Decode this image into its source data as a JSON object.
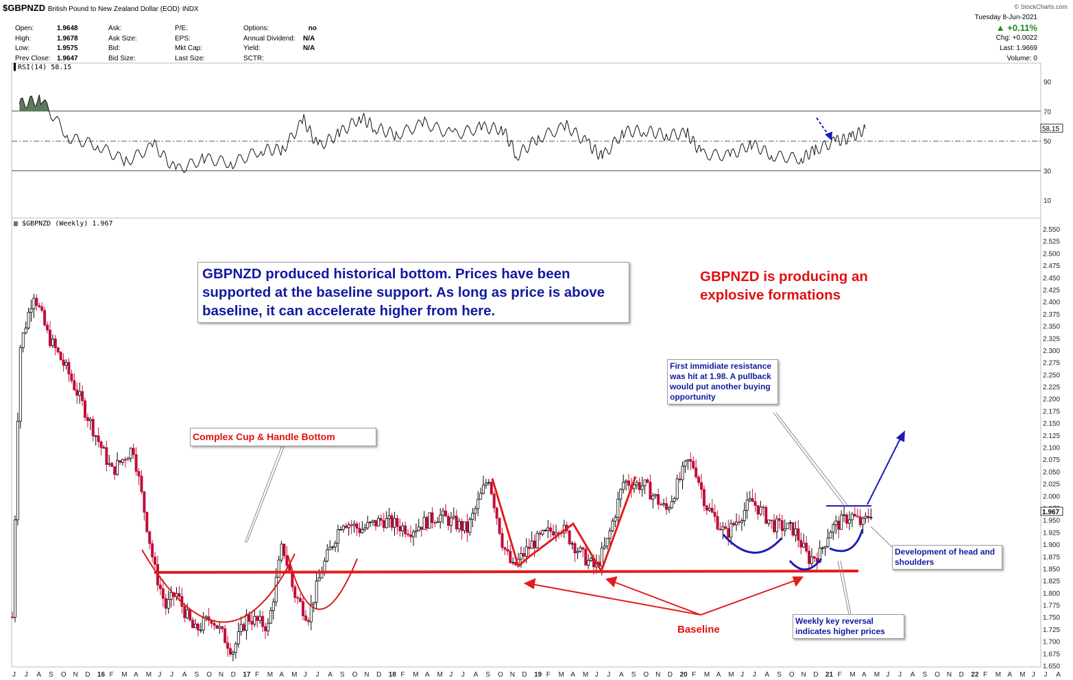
{
  "header": {
    "symbol": "$GBPNZD",
    "name": "British Pound to New Zealand Dollar (EOD)",
    "exchange": "INDX",
    "brand": "© StockCharts.com",
    "date": "Tuesday  8-Jun-2021",
    "change_pct": "▲ +0.11%",
    "change": "Chg: +0.0022",
    "last": "Last:  1.9669",
    "volume": "Volume:       0",
    "stats": {
      "open_label": "Open:",
      "open": "1.9648",
      "high_label": "High:",
      "high": "1.9678",
      "low_label": "Low:",
      "low": "1.9575",
      "prev_label": "Prev Close:",
      "prev": "1.9647",
      "ask_label": "Ask:",
      "ask_size_label": "Ask Size:",
      "bid_label": "Bid:",
      "bid_size_label": "Bid Size:",
      "pe_label": "P/E:",
      "eps_label": "EPS:",
      "mktcap_label": "Mkt Cap:",
      "lastsize_label": "Last Size:",
      "options_label": "Options:",
      "options": "no",
      "dividend_label": "Annual Dividend:",
      "dividend": "N/A",
      "yield_label": "Yield:",
      "yield": "N/A",
      "sctr_label": "SCTR:"
    }
  },
  "rsi_label": "RSI(14) 58.15",
  "price_label": "$GBPNZD (Weekly) 1.967",
  "annotations": {
    "main_note": "GBPNZD produced historical bottom. Prices have been supported at the baseline support. As long as price is above baseline, it can accelerate higher from here.",
    "explosive": "GBPNZD is producing an explosive formations",
    "cup_handle": "Complex Cup & Handle Bottom",
    "resistance": "First immidiate resistance was hit at 1.98. A pullback would put another buying opportunity",
    "head_shoulders": "Development of head and shoulders",
    "key_reversal": "Weekly key reversal indicates higher prices",
    "baseline": "Baseline"
  },
  "chart_data": [
    {
      "type": "line",
      "title": "RSI(14) 58.15",
      "ylim": [
        0,
        100
      ],
      "yticks": [
        10,
        30,
        50,
        70,
        90
      ],
      "last_value": "58.15",
      "x": [
        2015.45,
        2015.6,
        2015.8,
        2016.0,
        2016.2,
        2016.4,
        2016.55,
        2016.75,
        2016.95,
        2017.15,
        2017.3,
        2017.45,
        2017.55,
        2017.7,
        2017.85,
        2017.95,
        2018.1,
        2018.3,
        2018.5,
        2018.7,
        2018.85,
        2018.95,
        2019.1,
        2019.3,
        2019.45,
        2019.55,
        2019.7,
        2019.85,
        2020.0,
        2020.15,
        2020.25,
        2020.45,
        2020.6,
        2020.75,
        2020.95,
        2021.05,
        2021.2,
        2021.3,
        2021.4
      ],
      "values": [
        75,
        78,
        52,
        47,
        36,
        47,
        30,
        38,
        35,
        44,
        44,
        64,
        46,
        55,
        66,
        59,
        54,
        62,
        54,
        59,
        58,
        40,
        52,
        60,
        48,
        39,
        56,
        57,
        54,
        55,
        41,
        40,
        48,
        40,
        38,
        44,
        50,
        52,
        58.15
      ]
    },
    {
      "type": "candlestick",
      "title": "$GBPNZD (Weekly) 1.967",
      "ylim": [
        1.65,
        2.55
      ],
      "yticks": [
        "1.650",
        "1.675",
        "1.700",
        "1.725",
        "1.750",
        "1.775",
        "1.800",
        "1.825",
        "1.850",
        "1.875",
        "1.900",
        "1.925",
        "1.950",
        "1.975",
        "2.000",
        "2.025",
        "2.050",
        "2.075",
        "2.100",
        "2.125",
        "2.150",
        "2.175",
        "2.200",
        "2.225",
        "2.250",
        "2.275",
        "2.300",
        "2.325",
        "2.350",
        "2.375",
        "2.400",
        "2.425",
        "2.450",
        "2.475",
        "2.500",
        "2.525",
        "2.550"
      ],
      "last_price": "1.967",
      "baseline": 1.84,
      "x_labels": [
        "J",
        "J",
        "A",
        "S",
        "O",
        "N",
        "D",
        "16",
        "F",
        "M",
        "A",
        "M",
        "J",
        "J",
        "A",
        "S",
        "O",
        "N",
        "D",
        "17",
        "F",
        "M",
        "A",
        "M",
        "J",
        "J",
        "A",
        "S",
        "O",
        "N",
        "D",
        "18",
        "F",
        "M",
        "A",
        "M",
        "J",
        "J",
        "A",
        "S",
        "O",
        "N",
        "D",
        "19",
        "F",
        "M",
        "A",
        "M",
        "J",
        "J",
        "A",
        "S",
        "O",
        "N",
        "D",
        "20",
        "F",
        "M",
        "A",
        "M",
        "J",
        "J",
        "A",
        "S",
        "O",
        "N",
        "D",
        "21",
        "F",
        "M",
        "A",
        "M",
        "J",
        "J",
        "A",
        "S",
        "O",
        "N",
        "D",
        "22",
        "F",
        "M",
        "A",
        "M",
        "J",
        "J",
        "A"
      ],
      "x": [
        2015.4,
        2015.45,
        2015.55,
        2015.65,
        2015.8,
        2015.95,
        2016.1,
        2016.25,
        2016.4,
        2016.48,
        2016.55,
        2016.68,
        2016.8,
        2016.95,
        2017.05,
        2017.2,
        2017.3,
        2017.38,
        2017.48,
        2017.58,
        2017.72,
        2017.85,
        2018.0,
        2018.2,
        2018.4,
        2018.6,
        2018.75,
        2018.85,
        2018.92,
        2019.05,
        2019.25,
        2019.4,
        2019.5,
        2019.58,
        2019.7,
        2019.85,
        2020.0,
        2020.15,
        2020.2,
        2020.28,
        2020.42,
        2020.6,
        2020.75,
        2020.9,
        2021.0,
        2021.08,
        2021.15,
        2021.3,
        2021.38,
        2021.44
      ],
      "values": [
        1.75,
        2.3,
        2.42,
        2.33,
        2.25,
        2.15,
        2.05,
        2.1,
        1.85,
        1.77,
        1.8,
        1.72,
        1.75,
        1.68,
        1.75,
        1.73,
        1.9,
        1.8,
        1.75,
        1.85,
        1.95,
        1.93,
        1.95,
        1.93,
        1.96,
        1.93,
        2.04,
        1.9,
        1.85,
        1.9,
        1.94,
        1.88,
        1.85,
        1.9,
        2.03,
        2.02,
        1.97,
        2.07,
        2.06,
        1.98,
        1.92,
        1.99,
        1.94,
        1.93,
        1.87,
        1.88,
        1.93,
        1.96,
        1.94,
        1.967
      ]
    }
  ],
  "colors": {
    "up": "#000000",
    "down": "#c00e3a",
    "accent_red": "#e41c1c",
    "accent_blue": "#1a1ab8",
    "rsi_overbought": "#4a6b4a",
    "rsi_oversold": "#9b5a50"
  }
}
